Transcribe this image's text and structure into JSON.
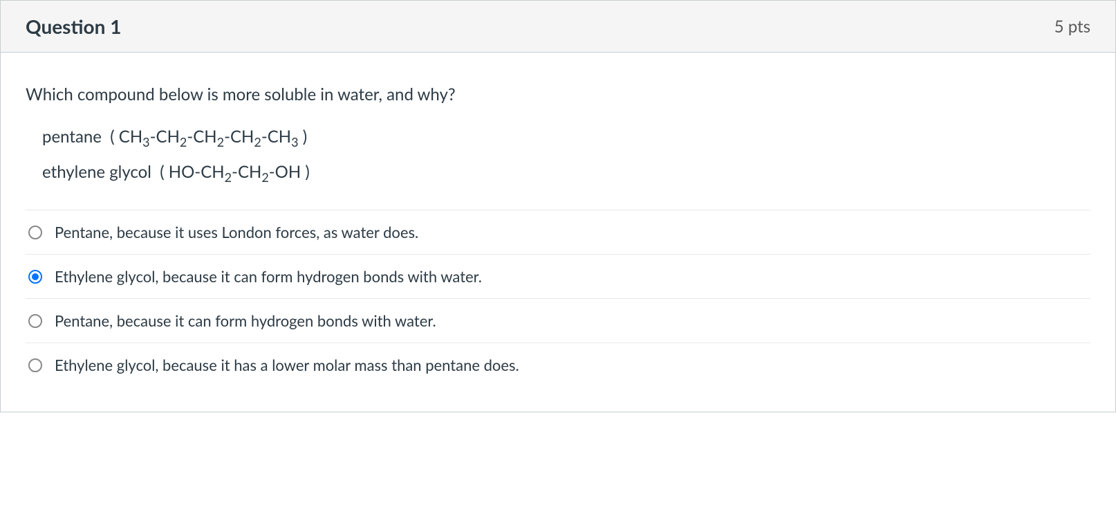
{
  "header": {
    "title": "Question 1",
    "points": "5 pts"
  },
  "question": {
    "prompt": "Which compound below is more soluble in water, and why?",
    "compounds": [
      {
        "name": "pentane",
        "formula_html": "( CH<sub>3</sub>-CH<sub>2</sub>-CH<sub>2</sub>-CH<sub>2</sub>-CH<sub>3</sub> )"
      },
      {
        "name": "ethylene glycol",
        "formula_html": "( HO-CH<sub>2</sub>-CH<sub>2</sub>-OH )"
      }
    ]
  },
  "answers": [
    {
      "label": "Pentane, because it uses London forces, as water does.",
      "selected": false
    },
    {
      "label": "Ethylene glycol, because it can form hydrogen bonds with water.",
      "selected": true
    },
    {
      "label": "Pentane, because it can form hydrogen bonds with water.",
      "selected": false
    },
    {
      "label": "Ethylene glycol, because it has a lower molar mass than pentane does.",
      "selected": false
    }
  ],
  "styling": {
    "card_border_color": "#c7cdd1",
    "header_bg": "#f5f5f5",
    "text_color": "#2d3b45",
    "points_color": "#595959",
    "divider_color": "#e8e8e8",
    "radio_border": "#888888",
    "radio_selected_color": "#0374ff",
    "title_fontsize": 28,
    "body_fontsize": 24,
    "answer_fontsize": 22
  }
}
